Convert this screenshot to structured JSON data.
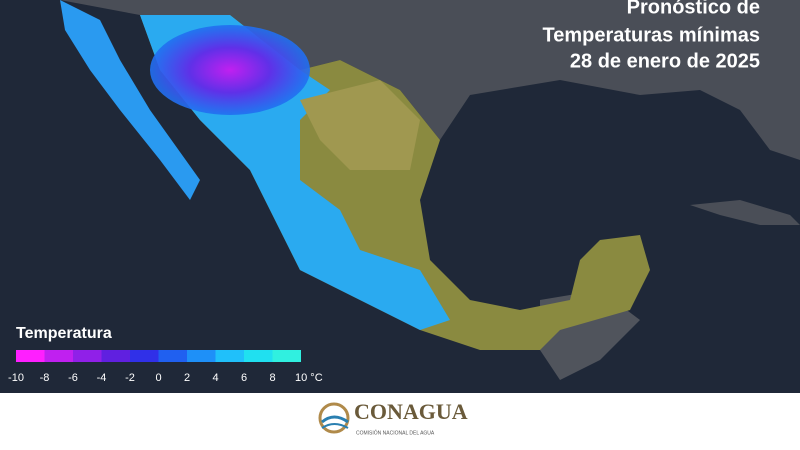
{
  "header": {
    "title_lines": [
      "Pronóstico de",
      "Temperaturas mínimas",
      "28 de enero de 2025"
    ]
  },
  "legend": {
    "title": "Temperatura",
    "colors": [
      "#ff1fff",
      "#c020f0",
      "#9020e8",
      "#6020e0",
      "#3030e8",
      "#2060f0",
      "#1e90f8",
      "#20c0fa",
      "#20e0f0",
      "#30f0e0"
    ],
    "ticks": [
      -10,
      -8,
      -6,
      -4,
      -2,
      0,
      2,
      4,
      6,
      8,
      {
        "value": 10,
        "label": "10 °C"
      }
    ]
  },
  "footer": {
    "logo": "CONAGUA",
    "subtitle": "COMISIÓN NACIONAL DEL AGUA"
  }
}
